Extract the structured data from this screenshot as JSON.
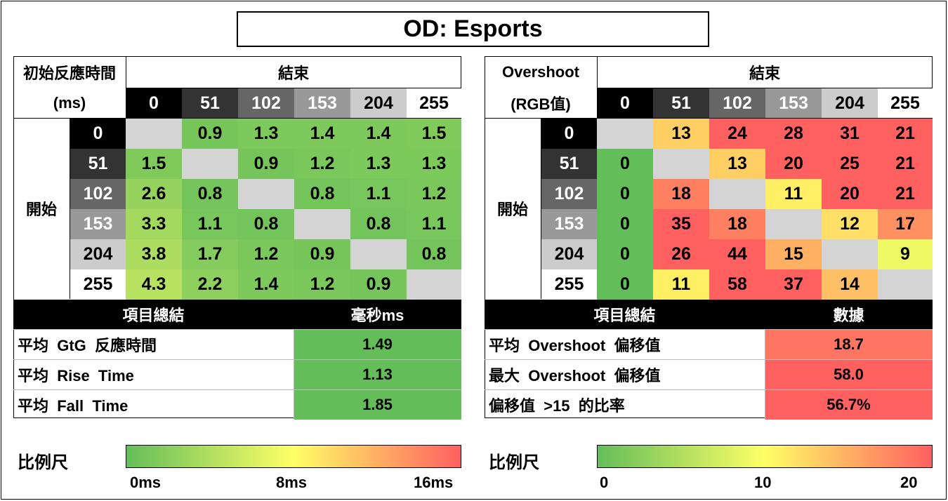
{
  "title": "OD:  Esports",
  "colors": {
    "green": "#63BE5A",
    "gray": "#D4D4D4",
    "black_header": "#000000",
    "gradient_low": "#63BE5A",
    "gradient_mid": "#FFFF66",
    "gradient_high": "#FF6060"
  },
  "left": {
    "corner_line1": "初始反應時間",
    "corner_line2": "(ms)",
    "end_label": "結束",
    "start_label": "開始",
    "levels": [
      "0",
      "51",
      "102",
      "153",
      "204",
      "255"
    ],
    "matrix": [
      [
        "",
        "0.9",
        "1.3",
        "1.4",
        "1.4",
        "1.5"
      ],
      [
        "1.5",
        "",
        "0.9",
        "1.2",
        "1.3",
        "1.3"
      ],
      [
        "2.6",
        "0.8",
        "",
        "0.8",
        "1.1",
        "1.2"
      ],
      [
        "3.3",
        "1.1",
        "0.8",
        "",
        "0.8",
        "1.1"
      ],
      [
        "3.8",
        "1.7",
        "1.2",
        "0.9",
        "",
        "0.8"
      ],
      [
        "4.3",
        "2.2",
        "1.4",
        "1.2",
        "0.9",
        ""
      ]
    ],
    "summary_header": "項目總結",
    "summary_value_header": "毫秒ms",
    "summary": [
      {
        "label": "平均  GtG  反應時間",
        "value": "1.49"
      },
      {
        "label": "平均  Rise  Time",
        "value": "1.13"
      },
      {
        "label": "平均  Fall  Time",
        "value": "1.85"
      }
    ],
    "scale_label": "比例尺",
    "scale_ticks": [
      "0ms",
      "8ms",
      "16ms"
    ]
  },
  "right": {
    "corner_line1": "Overshoot",
    "corner_line2": "(RGB值)",
    "end_label": "結束",
    "start_label": "開始",
    "levels": [
      "0",
      "51",
      "102",
      "153",
      "204",
      "255"
    ],
    "matrix": [
      [
        "",
        "13",
        "24",
        "28",
        "31",
        "21"
      ],
      [
        "0",
        "",
        "13",
        "20",
        "25",
        "21"
      ],
      [
        "0",
        "18",
        "",
        "11",
        "20",
        "21"
      ],
      [
        "0",
        "35",
        "18",
        "",
        "12",
        "17"
      ],
      [
        "0",
        "26",
        "44",
        "15",
        "",
        "9"
      ],
      [
        "0",
        "11",
        "58",
        "37",
        "14",
        ""
      ]
    ],
    "summary_header": "項目總結",
    "summary_value_header": "數據",
    "summary": [
      {
        "label": "平均  Overshoot  偏移值",
        "value": "18.7"
      },
      {
        "label": "最大  Overshoot  偏移值",
        "value": "58.0"
      },
      {
        "label": "偏移值  >15  的比率",
        "value": "56.7%"
      }
    ],
    "scale_label": "比例尺",
    "scale_ticks": [
      "0",
      "10",
      "20"
    ]
  }
}
